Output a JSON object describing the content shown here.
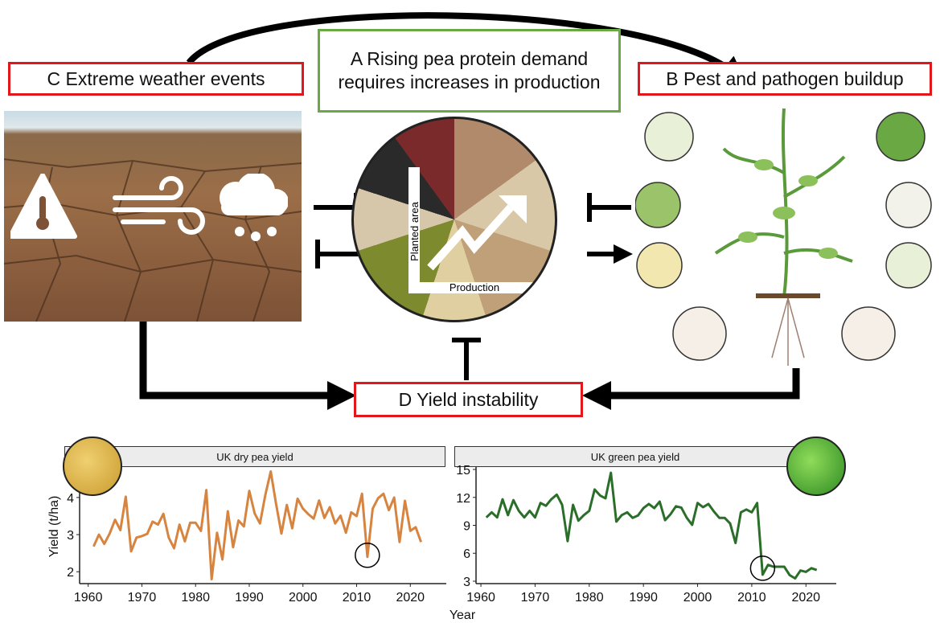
{
  "boxes": {
    "a_line1": "A  Rising pea protein demand",
    "a_line2": "requires increases in production",
    "b": "B  Pest and pathogen buildup",
    "c": "C  Extreme weather events",
    "d": "D  Yield instability"
  },
  "inset": {
    "y_label": "Planted area",
    "x_label": "Production"
  },
  "colors": {
    "red": "#e0181b",
    "green": "#6aa843",
    "dry_pea": "#d6843f",
    "green_pea": "#2b6e2a"
  },
  "icons": [
    "thermometer-warning-icon",
    "wind-icon",
    "rain-cloud-icon"
  ],
  "chart_data": [
    {
      "type": "line",
      "title": "UK dry pea yield",
      "ylabel": "Yield (t/ha)",
      "xlabel": "Year",
      "xticks": [
        1960,
        1970,
        1980,
        1990,
        2000,
        2010,
        2020
      ],
      "yticks": [
        2,
        3,
        4
      ],
      "xlim": [
        1958.4,
        2026.7
      ],
      "ylim": [
        1.68,
        4.82
      ],
      "highlight_year": 2012,
      "x": [
        1961,
        1962,
        1963,
        1964,
        1965,
        1966,
        1967,
        1968,
        1969,
        1970,
        1971,
        1972,
        1973,
        1974,
        1975,
        1976,
        1977,
        1978,
        1979,
        1980,
        1981,
        1982,
        1983,
        1984,
        1985,
        1986,
        1987,
        1988,
        1989,
        1990,
        1991,
        1992,
        1993,
        1994,
        1995,
        1996,
        1997,
        1998,
        1999,
        2000,
        2001,
        2002,
        2003,
        2004,
        2005,
        2006,
        2007,
        2008,
        2009,
        2010,
        2011,
        2012,
        2013,
        2014,
        2015,
        2016,
        2017,
        2018,
        2019,
        2020,
        2021,
        2022
      ],
      "values": [
        2.68,
        3.0,
        2.75,
        3.03,
        3.4,
        3.12,
        4.02,
        2.55,
        2.92,
        2.96,
        3.02,
        3.35,
        3.27,
        3.56,
        2.92,
        2.63,
        3.27,
        2.82,
        3.32,
        3.32,
        3.1,
        4.2,
        1.8,
        3.05,
        2.33,
        3.63,
        2.66,
        3.38,
        3.22,
        4.18,
        3.57,
        3.3,
        4.07,
        4.7,
        3.82,
        3.03,
        3.8,
        3.17,
        3.97,
        3.7,
        3.55,
        3.43,
        3.92,
        3.45,
        3.74,
        3.3,
        3.51,
        3.05,
        3.6,
        3.5,
        4.1,
        2.4,
        3.7,
        3.98,
        4.1,
        3.66,
        4.0,
        2.8,
        3.91,
        3.1,
        3.2,
        2.8
      ]
    },
    {
      "type": "line",
      "title": "UK green pea yield",
      "xticks": [
        1960,
        1970,
        1980,
        1990,
        2000,
        2010,
        2020
      ],
      "yticks": [
        3,
        6,
        9,
        12,
        15
      ],
      "xlim": [
        1959.1,
        2025.6
      ],
      "ylim": [
        2.74,
        15.26
      ],
      "highlight_year": 2012,
      "x": [
        1961,
        1962,
        1963,
        1964,
        1965,
        1966,
        1967,
        1968,
        1969,
        1970,
        1971,
        1972,
        1973,
        1974,
        1975,
        1976,
        1977,
        1978,
        1979,
        1980,
        1981,
        1982,
        1983,
        1984,
        1985,
        1986,
        1987,
        1988,
        1989,
        1990,
        1991,
        1992,
        1993,
        1994,
        1995,
        1996,
        1997,
        1998,
        1999,
        2000,
        2001,
        2002,
        2003,
        2004,
        2005,
        2006,
        2007,
        2008,
        2009,
        2010,
        2011,
        2012,
        2013,
        2014,
        2015,
        2016,
        2017,
        2018,
        2019,
        2020,
        2021,
        2022
      ],
      "values": [
        9.85,
        10.4,
        9.85,
        11.8,
        10.1,
        11.7,
        10.55,
        9.85,
        10.55,
        9.85,
        11.4,
        11.1,
        11.8,
        12.3,
        11.2,
        7.3,
        11.2,
        9.5,
        10.1,
        10.55,
        12.85,
        12.2,
        11.9,
        14.65,
        9.4,
        10.1,
        10.4,
        9.8,
        10.05,
        10.85,
        11.3,
        10.85,
        11.55,
        9.55,
        10.2,
        11.05,
        10.9,
        9.8,
        9.05,
        11.4,
        10.95,
        11.3,
        10.5,
        9.8,
        9.8,
        9.2,
        7.1,
        10.4,
        10.7,
        10.4,
        11.4,
        3.7,
        4.75,
        4.55,
        4.55,
        4.55,
        3.65,
        3.3,
        4.15,
        4.0,
        4.4,
        4.2
      ]
    }
  ]
}
